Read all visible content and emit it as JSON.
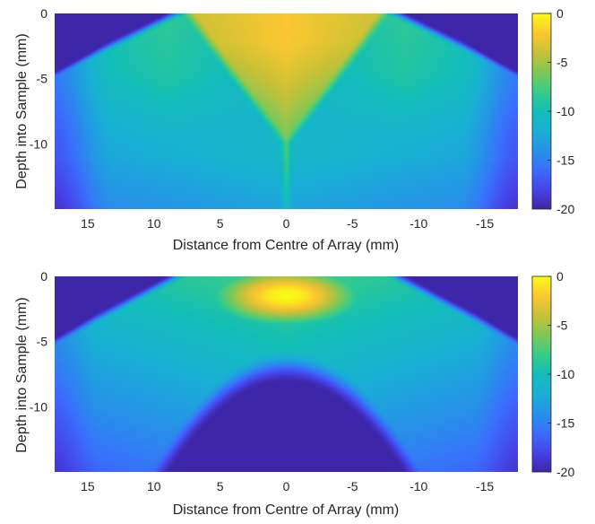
{
  "colors": {
    "parula_low": "#3e26a8",
    "parula_mid": "#12b4cb",
    "parula_high": "#f9fb15"
  },
  "chart_data": [
    {
      "type": "heatmap",
      "colormap": "parula",
      "xlabel": "Distance from Centre of Array (mm)",
      "ylabel": "Depth into Sample (mm)",
      "x_reversed": true,
      "xlim": [
        17.5,
        -17.5
      ],
      "ylim": [
        0,
        15
      ],
      "x_ticks": [
        15,
        10,
        5,
        0,
        -5,
        -10,
        -15
      ],
      "x_tick_labels": [
        "15",
        "10",
        "5",
        "0",
        "-5",
        "-10",
        "-15"
      ],
      "y_ticks": [
        0,
        -5,
        -10
      ],
      "y_tick_labels": [
        "0",
        "-5",
        "-10"
      ],
      "colorbar": {
        "range": [
          -20,
          0
        ],
        "ticks": [
          0,
          -5,
          -10,
          -15,
          -20
        ],
        "tick_labels": [
          "0",
          "-5",
          "-10",
          "-15",
          "-20"
        ]
      },
      "field": {
        "aperture_halfwidth_mm": 7.5,
        "focal_peak_db": 0,
        "focal_depth_mm": 2,
        "background_floor_db": -20,
        "shallow_side_lobe_db": -9,
        "deep_field_db": -11,
        "deep_side_db": -13
      }
    },
    {
      "type": "heatmap",
      "colormap": "parula",
      "xlabel": "Distance from Centre of Array (mm)",
      "ylabel": "Depth into Sample (mm)",
      "x_reversed": true,
      "xlim": [
        17.5,
        -17.5
      ],
      "ylim": [
        0,
        15
      ],
      "x_ticks": [
        15,
        10,
        5,
        0,
        -5,
        -10,
        -15
      ],
      "x_tick_labels": [
        "15",
        "10",
        "5",
        "0",
        "-5",
        "-10",
        "-15"
      ],
      "y_ticks": [
        0,
        -5,
        -10
      ],
      "y_tick_labels": [
        "0",
        "-5",
        "-10"
      ],
      "colorbar": {
        "range": [
          -20,
          0
        ],
        "ticks": [
          0,
          -5,
          -10,
          -15,
          -20
        ],
        "tick_labels": [
          "0",
          "-5",
          "-10",
          "-15",
          "-20"
        ]
      },
      "field": {
        "aperture_halfwidth_mm": 7.5,
        "focal_peak_db": 0,
        "focal_depth_mm": 1.5,
        "background_floor_db": -20,
        "shallow_side_lobe_db": -8,
        "deep_edge_db": -14,
        "attenuated_core_below_mm": 7
      }
    }
  ]
}
